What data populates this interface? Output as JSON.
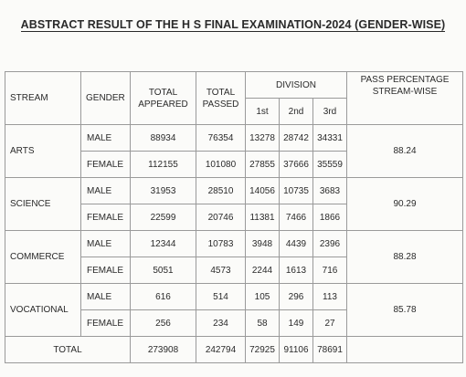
{
  "title": "ABSTRACT RESULT OF THE H S FINAL EXAMINATION-2024 (GENDER-WISE)",
  "headers": {
    "stream": "STREAM",
    "gender": "GENDER",
    "total_appeared": "TOTAL APPEARED",
    "total_passed": "TOTAL PASSED",
    "division": "DIVISION",
    "div_1st": "1st",
    "div_2nd": "2nd",
    "div_3rd": "3rd",
    "pass_percentage": "PASS PERCENTAGE STREAM-WISE"
  },
  "streams": [
    {
      "name": "ARTS",
      "pass_percentage": "88.24",
      "rows": [
        {
          "gender": "MALE",
          "appeared": "88934",
          "passed": "76354",
          "d1": "13278",
          "d2": "28742",
          "d3": "34331"
        },
        {
          "gender": "FEMALE",
          "appeared": "112155",
          "passed": "101080",
          "d1": "27855",
          "d2": "37666",
          "d3": "35559"
        }
      ]
    },
    {
      "name": "SCIENCE",
      "pass_percentage": "90.29",
      "rows": [
        {
          "gender": "MALE",
          "appeared": "31953",
          "passed": "28510",
          "d1": "14056",
          "d2": "10735",
          "d3": "3683"
        },
        {
          "gender": "FEMALE",
          "appeared": "22599",
          "passed": "20746",
          "d1": "11381",
          "d2": "7466",
          "d3": "1866"
        }
      ]
    },
    {
      "name": "COMMERCE",
      "pass_percentage": "88.28",
      "rows": [
        {
          "gender": "MALE",
          "appeared": "12344",
          "passed": "10783",
          "d1": "3948",
          "d2": "4439",
          "d3": "2396"
        },
        {
          "gender": "FEMALE",
          "appeared": "5051",
          "passed": "4573",
          "d1": "2244",
          "d2": "1613",
          "d3": "716"
        }
      ]
    },
    {
      "name": "VOCATIONAL",
      "pass_percentage": "85.78",
      "rows": [
        {
          "gender": "MALE",
          "appeared": "616",
          "passed": "514",
          "d1": "105",
          "d2": "296",
          "d3": "113"
        },
        {
          "gender": "FEMALE",
          "appeared": "256",
          "passed": "234",
          "d1": "58",
          "d2": "149",
          "d3": "27"
        }
      ]
    }
  ],
  "total": {
    "label": "TOTAL",
    "appeared": "273908",
    "passed": "242794",
    "d1": "72925",
    "d2": "91106",
    "d3": "78691"
  }
}
